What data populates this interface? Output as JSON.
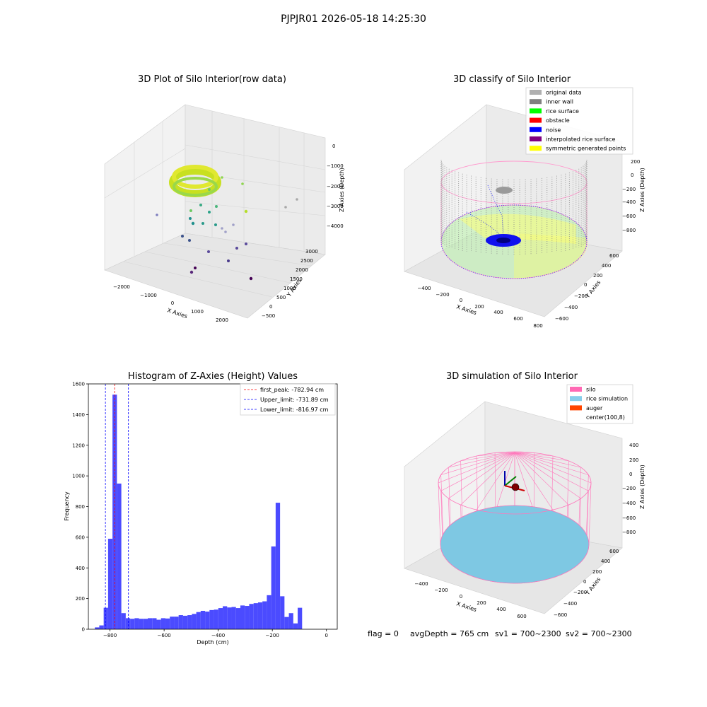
{
  "figure": {
    "suptitle": "PJPJR01 2026-05-18 14:25:30",
    "footer": {
      "flag": "flag = 0",
      "avg_depth": "avgDepth = 765 cm",
      "sv1": "sv1 = 700~2300",
      "sv2": "sv2 = 700~2300"
    }
  },
  "colors": {
    "histogram_bar": "#4b4bff",
    "first_peak_line": "#ff0000",
    "limit_lines": "#0000ff",
    "silo": "#ff69b4",
    "rice_simulation": "#87ceeb",
    "auger": "#ff4500",
    "inner_wall": "#808080",
    "original_data": "#b0b0b0",
    "rice_surface": "#00ff00",
    "obstacle": "#ff0000",
    "noise": "#0000ff",
    "interpolated_rice_surface": "#800080",
    "symmetric_generated_points": "#ffff00"
  },
  "chart_data": [
    {
      "type": "scatter",
      "title": "3D Plot of Silo Interior(row data)",
      "xlabel": "X Axies",
      "ylabel": "Y Axies",
      "zlabel": "Z-Axies (Depth)",
      "xticks": [
        "−2000",
        "−1000",
        "0",
        "1000",
        "2000"
      ],
      "yticks": [
        "−500",
        "0",
        "500",
        "1000",
        "1500",
        "2000",
        "2500",
        "3000"
      ],
      "zticks": [
        "0",
        "−1000",
        "−2000",
        "−3000",
        "−4000"
      ],
      "colormap": "viridis"
    },
    {
      "type": "scatter",
      "title": "3D classify of Silo Interior",
      "xlabel": "X Axies",
      "ylabel": "Y Axies",
      "zlabel": "Z Axies (Depth)",
      "xticks": [
        "−400",
        "−200",
        "0",
        "200",
        "400",
        "600",
        "800"
      ],
      "yticks": [
        "−600",
        "−400",
        "−200",
        "0",
        "200",
        "400",
        "600"
      ],
      "zticks": [
        "200",
        "0",
        "−200",
        "−400",
        "−600",
        "−800"
      ],
      "legend_position": "top-right",
      "legend": [
        {
          "label": "original data",
          "color": "#b0b0b0"
        },
        {
          "label": "inner wall",
          "color": "#808080"
        },
        {
          "label": "rice surface",
          "color": "#00ff00"
        },
        {
          "label": "obstacle",
          "color": "#ff0000"
        },
        {
          "label": "noise",
          "color": "#0000ff"
        },
        {
          "label": "interpolated rice surface",
          "color": "#800080"
        },
        {
          "label": "symmetric generated points",
          "color": "#ffff00"
        }
      ]
    },
    {
      "type": "bar",
      "title": "Histogram of Z-Axies (Height) Values",
      "xlabel": "Depth (cm)",
      "ylabel": "Frequency",
      "xlim": [
        -880,
        40
      ],
      "ylim": [
        0,
        1600
      ],
      "xticks": [
        -800,
        -600,
        -400,
        -200,
        0
      ],
      "xtick_labels": [
        "−800",
        "−600",
        "−400",
        "−200",
        "0"
      ],
      "yticks": [
        0,
        200,
        400,
        600,
        800,
        1000,
        1200,
        1400,
        1600
      ],
      "bin_start": -856,
      "bin_width": 16.3,
      "values": [
        12,
        25,
        140,
        590,
        1530,
        950,
        105,
        72,
        68,
        72,
        68,
        68,
        72,
        72,
        62,
        72,
        70,
        82,
        82,
        92,
        88,
        92,
        100,
        112,
        120,
        115,
        125,
        128,
        138,
        150,
        142,
        145,
        138,
        155,
        152,
        165,
        170,
        175,
        182,
        222,
        540,
        825,
        215,
        80,
        105,
        38,
        140
      ],
      "reference_lines": [
        {
          "label": "first_peak: -782.94 cm",
          "x": -782.94,
          "color": "#ff0000"
        },
        {
          "label": "Upper_limit: -731.89 cm",
          "x": -731.89,
          "color": "#0000ff"
        },
        {
          "label": "Lower_limit: -816.97 cm",
          "x": -816.97,
          "color": "#0000ff"
        }
      ],
      "legend_position": "top-right"
    },
    {
      "type": "scatter",
      "title": "3D simulation of Silo Interior",
      "xlabel": "X Axies",
      "ylabel": "Y Axies",
      "zlabel": "Z Axies (Depth)",
      "xticks": [
        "−400",
        "−200",
        "0",
        "200",
        "400",
        "600"
      ],
      "yticks": [
        "−600",
        "−400",
        "−200",
        "0",
        "200",
        "400",
        "600"
      ],
      "zticks": [
        "400",
        "200",
        "0",
        "−200",
        "−400",
        "−600",
        "−800"
      ],
      "legend_position": "top-right",
      "legend": [
        {
          "label": "silo",
          "color": "#ff69b4"
        },
        {
          "label": "rice simulation",
          "color": "#87ceeb"
        },
        {
          "label": "auger",
          "color": "#ff4500"
        },
        {
          "label": "center(100,8)",
          "color": ""
        }
      ]
    }
  ]
}
